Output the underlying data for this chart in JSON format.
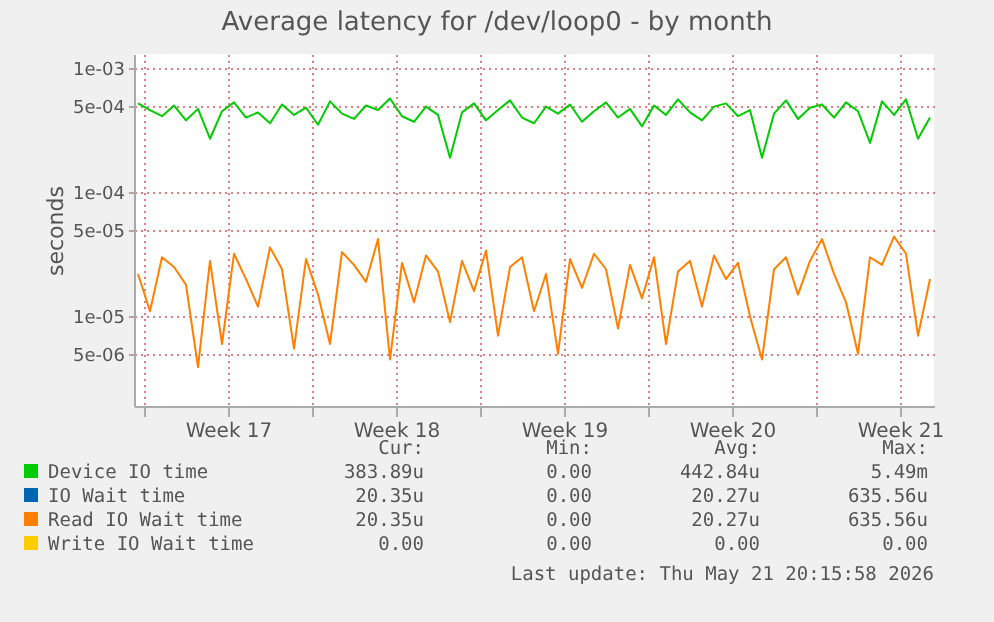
{
  "chart_data": {
    "type": "line",
    "title": "Average latency for /dev/loop0 - by month",
    "ylabel": "seconds",
    "log": "y",
    "grid": true,
    "legend": "bottom",
    "xlim": [
      "2026-04-19T14:00",
      "2026-05-22T22:00"
    ],
    "xticks": [
      {
        "value": "2026-04-20",
        "label": null
      },
      {
        "value": "2026-04-23T12:00",
        "label": "Week 17"
      },
      {
        "value": "2026-04-27",
        "label": null
      },
      {
        "value": "2026-04-30T12:00",
        "label": "Week 18"
      },
      {
        "value": "2026-05-04",
        "label": null
      },
      {
        "value": "2026-05-07T12:00",
        "label": "Week 19"
      },
      {
        "value": "2026-05-11",
        "label": null
      },
      {
        "value": "2026-05-14T12:00",
        "label": "Week 20"
      },
      {
        "value": "2026-05-18",
        "label": null
      },
      {
        "value": "2026-05-21T12:00",
        "label": "Week 21"
      }
    ],
    "ylim": [
      1.9e-06,
      0.0013
    ],
    "yticks": [
      {
        "value": 5e-06,
        "label": "5e-06"
      },
      {
        "value": 1e-05,
        "label": "1e-05"
      },
      {
        "value": 5e-05,
        "label": "5e-05"
      },
      {
        "value": 0.0001,
        "label": "1e-04"
      },
      {
        "value": 0.0005,
        "label": "5e-04"
      },
      {
        "value": 0.001,
        "label": "1e-03"
      }
    ],
    "x": [
      "2026-04-19T18:00",
      "2026-04-20T06:00",
      "2026-04-20T18:00",
      "2026-04-21T06:00",
      "2026-04-21T18:00",
      "2026-04-22T06:00",
      "2026-04-22T18:00",
      "2026-04-23T06:00",
      "2026-04-23T18:00",
      "2026-04-24T06:00",
      "2026-04-24T18:00",
      "2026-04-25T06:00",
      "2026-04-25T18:00",
      "2026-04-26T06:00",
      "2026-04-26T18:00",
      "2026-04-27T06:00",
      "2026-04-27T18:00",
      "2026-04-28T06:00",
      "2026-04-28T18:00",
      "2026-04-29T06:00",
      "2026-04-29T18:00",
      "2026-04-30T06:00",
      "2026-04-30T18:00",
      "2026-05-01T06:00",
      "2026-05-01T18:00",
      "2026-05-02T06:00",
      "2026-05-02T18:00",
      "2026-05-03T06:00",
      "2026-05-03T18:00",
      "2026-05-04T06:00",
      "2026-05-04T18:00",
      "2026-05-05T06:00",
      "2026-05-05T18:00",
      "2026-05-06T06:00",
      "2026-05-06T18:00",
      "2026-05-07T06:00",
      "2026-05-07T18:00",
      "2026-05-08T06:00",
      "2026-05-08T18:00",
      "2026-05-09T06:00",
      "2026-05-09T18:00",
      "2026-05-10T06:00",
      "2026-05-10T18:00",
      "2026-05-11T06:00",
      "2026-05-11T18:00",
      "2026-05-12T06:00",
      "2026-05-12T18:00",
      "2026-05-13T06:00",
      "2026-05-13T18:00",
      "2026-05-14T06:00",
      "2026-05-14T18:00",
      "2026-05-15T06:00",
      "2026-05-15T18:00",
      "2026-05-16T06:00",
      "2026-05-16T18:00",
      "2026-05-17T06:00",
      "2026-05-17T18:00",
      "2026-05-18T06:00",
      "2026-05-18T18:00",
      "2026-05-19T06:00",
      "2026-05-19T18:00",
      "2026-05-20T06:00",
      "2026-05-20T18:00",
      "2026-05-21T06:00",
      "2026-05-21T18:00",
      "2026-05-22T06:00",
      "2026-05-22T18:00"
    ],
    "series": [
      {
        "name": "Device IO time",
        "color": "#00cc00",
        "values": [
          0.00052,
          0.00046,
          0.00041,
          0.0005,
          0.00038,
          0.00047,
          0.00027,
          0.00045,
          0.00053,
          0.0004,
          0.00044,
          0.00036,
          0.00051,
          0.00042,
          0.00048,
          0.00035,
          0.00054,
          0.00043,
          0.00039,
          0.0005,
          0.00046,
          0.00057,
          0.00041,
          0.00037,
          0.00049,
          0.00042,
          0.00019,
          0.00044,
          0.00052,
          0.00038,
          0.00046,
          0.00055,
          0.0004,
          0.00036,
          0.00049,
          0.00043,
          0.00051,
          0.00037,
          0.00045,
          0.00053,
          0.0004,
          0.00047,
          0.00034,
          0.0005,
          0.00042,
          0.00056,
          0.00044,
          0.00038,
          0.00049,
          0.00052,
          0.00041,
          0.00046,
          0.00019,
          0.00043,
          0.00055,
          0.00039,
          0.00048,
          0.00051,
          0.0004,
          0.00053,
          0.00045,
          0.00025,
          0.00054,
          0.00042,
          0.00056,
          0.00027,
          0.0004
        ]
      },
      {
        "name": "IO Wait time",
        "color": "#0066b3",
        "values": [
          null,
          null,
          null,
          null,
          null,
          null,
          null,
          null,
          null,
          null,
          null,
          null,
          null,
          null,
          null,
          null,
          null,
          null,
          null,
          null,
          null,
          null,
          null,
          null,
          null,
          null,
          null,
          null,
          null,
          null,
          null,
          null,
          null,
          null,
          null,
          null,
          null,
          null,
          null,
          null,
          null,
          null,
          null,
          null,
          null,
          null,
          null,
          null,
          null,
          null,
          null,
          null,
          null,
          null,
          null,
          null,
          null,
          null,
          null,
          null,
          null,
          null,
          null,
          null,
          null,
          null,
          null
        ]
      },
      {
        "name": "Read IO Wait time",
        "color": "#ff8000",
        "values": [
          2.2e-05,
          1.1e-05,
          3e-05,
          2.5e-05,
          1.8e-05,
          3.9e-06,
          2.8e-05,
          6e-06,
          3.2e-05,
          2e-05,
          1.2e-05,
          3.6e-05,
          2.4e-05,
          5.5e-06,
          2.9e-05,
          1.5e-05,
          6e-06,
          3.3e-05,
          2.6e-05,
          1.9e-05,
          4.2e-05,
          4.5e-06,
          2.7e-05,
          1.3e-05,
          3.1e-05,
          2.3e-05,
          9e-06,
          2.8e-05,
          1.6e-05,
          3.4e-05,
          7e-06,
          2.5e-05,
          3e-05,
          1.1e-05,
          2.2e-05,
          5e-06,
          2.9e-05,
          1.7e-05,
          3.2e-05,
          2.4e-05,
          8e-06,
          2.6e-05,
          1.4e-05,
          3e-05,
          6e-06,
          2.3e-05,
          2.8e-05,
          1.2e-05,
          3.1e-05,
          2e-05,
          2.7e-05,
          1e-05,
          4.5e-06,
          2.4e-05,
          3e-05,
          1.5e-05,
          2.8e-05,
          4.2e-05,
          2.2e-05,
          1.3e-05,
          5e-06,
          3e-05,
          2.6e-05,
          4.4e-05,
          3.2e-05,
          7e-06,
          2e-05
        ]
      },
      {
        "name": "Write IO Wait time",
        "color": "#ffcc00",
        "values": [
          null,
          null,
          null,
          null,
          null,
          null,
          null,
          null,
          null,
          null,
          null,
          null,
          null,
          null,
          null,
          null,
          null,
          null,
          null,
          null,
          null,
          null,
          null,
          null,
          null,
          null,
          null,
          null,
          null,
          null,
          null,
          null,
          null,
          null,
          null,
          null,
          null,
          null,
          null,
          null,
          null,
          null,
          null,
          null,
          null,
          null,
          null,
          null,
          null,
          null,
          null,
          null,
          null,
          null,
          null,
          null,
          null,
          null,
          null,
          null,
          null,
          null,
          null,
          null,
          null,
          null,
          null
        ]
      }
    ],
    "annotations": [
      "Cur:",
      "Min:",
      "Avg:",
      "Max:",
      "383.89u",
      "0.00",
      "442.84u",
      "5.49m",
      "20.35u",
      "0.00",
      "20.27u",
      "635.56u",
      "20.35u",
      "0.00",
      "20.27u",
      "635.56u",
      "0.00",
      "0.00",
      "0.00",
      "0.00",
      "Last update: Thu May 21 20:15:58 2026"
    ]
  }
}
